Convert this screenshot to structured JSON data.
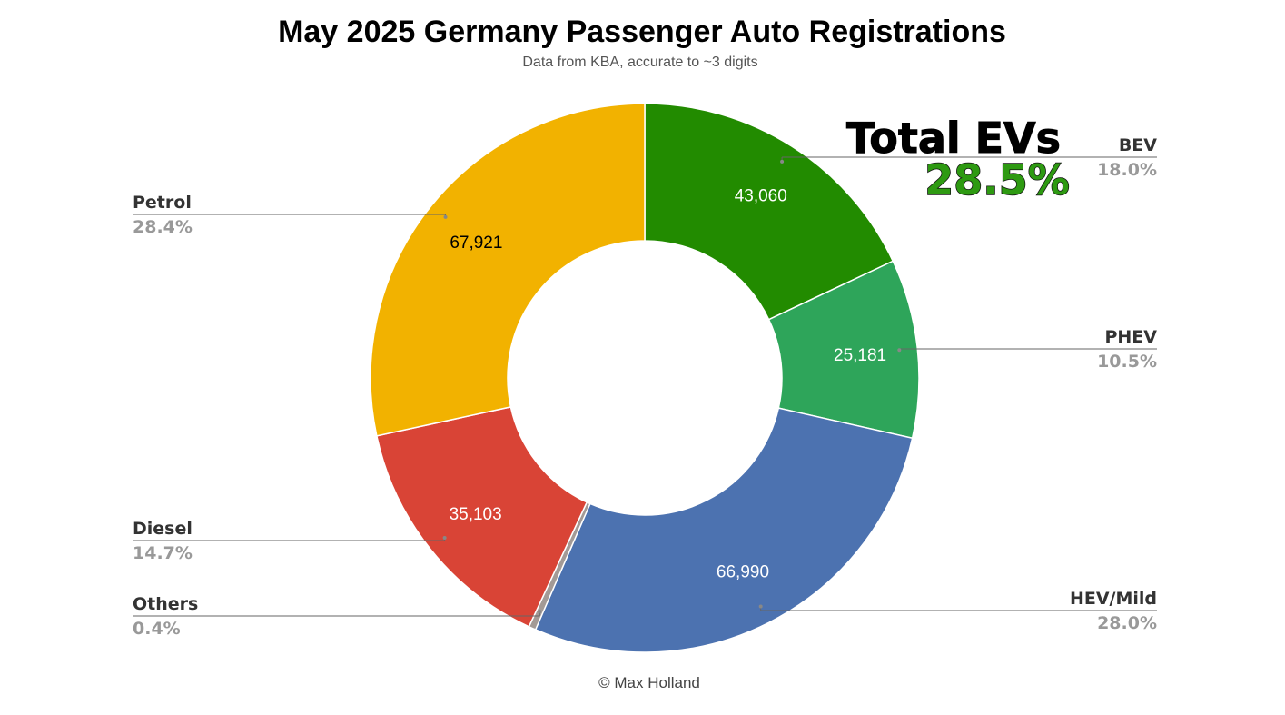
{
  "chart_data": {
    "type": "pie",
    "title": "May 2025 Germany Passenger Auto Registrations",
    "subtitle": "Data from KBA, accurate to ~3 digits",
    "credit": "© Max Holland",
    "categories": [
      "BEV",
      "PHEV",
      "HEV/Mild",
      "Others",
      "Diesel",
      "Petrol"
    ],
    "values": [
      43060,
      25181,
      66990,
      1000,
      35103,
      67921
    ],
    "value_labels": [
      "43,060",
      "25,181",
      "66,990",
      "",
      "35,103",
      "67,921"
    ],
    "percent_labels": [
      "18.0%",
      "10.5%",
      "28.0%",
      "0.4%",
      "14.7%",
      "28.4%"
    ],
    "colors": [
      "#228b00",
      "#2ea55a",
      "#4c72b0",
      "#a39a96",
      "#d94436",
      "#f2b200"
    ],
    "value_label_colors": [
      "#ffffff",
      "#ffffff",
      "#ffffff",
      "#ffffff",
      "#ffffff",
      "#000000"
    ],
    "legend_sides": [
      "right",
      "right",
      "right",
      "left",
      "left",
      "left"
    ],
    "donut": true,
    "start_angle_deg": 0,
    "direction": "clockwise",
    "annotation": {
      "title": "Total EVs",
      "value": "28.5%"
    }
  }
}
